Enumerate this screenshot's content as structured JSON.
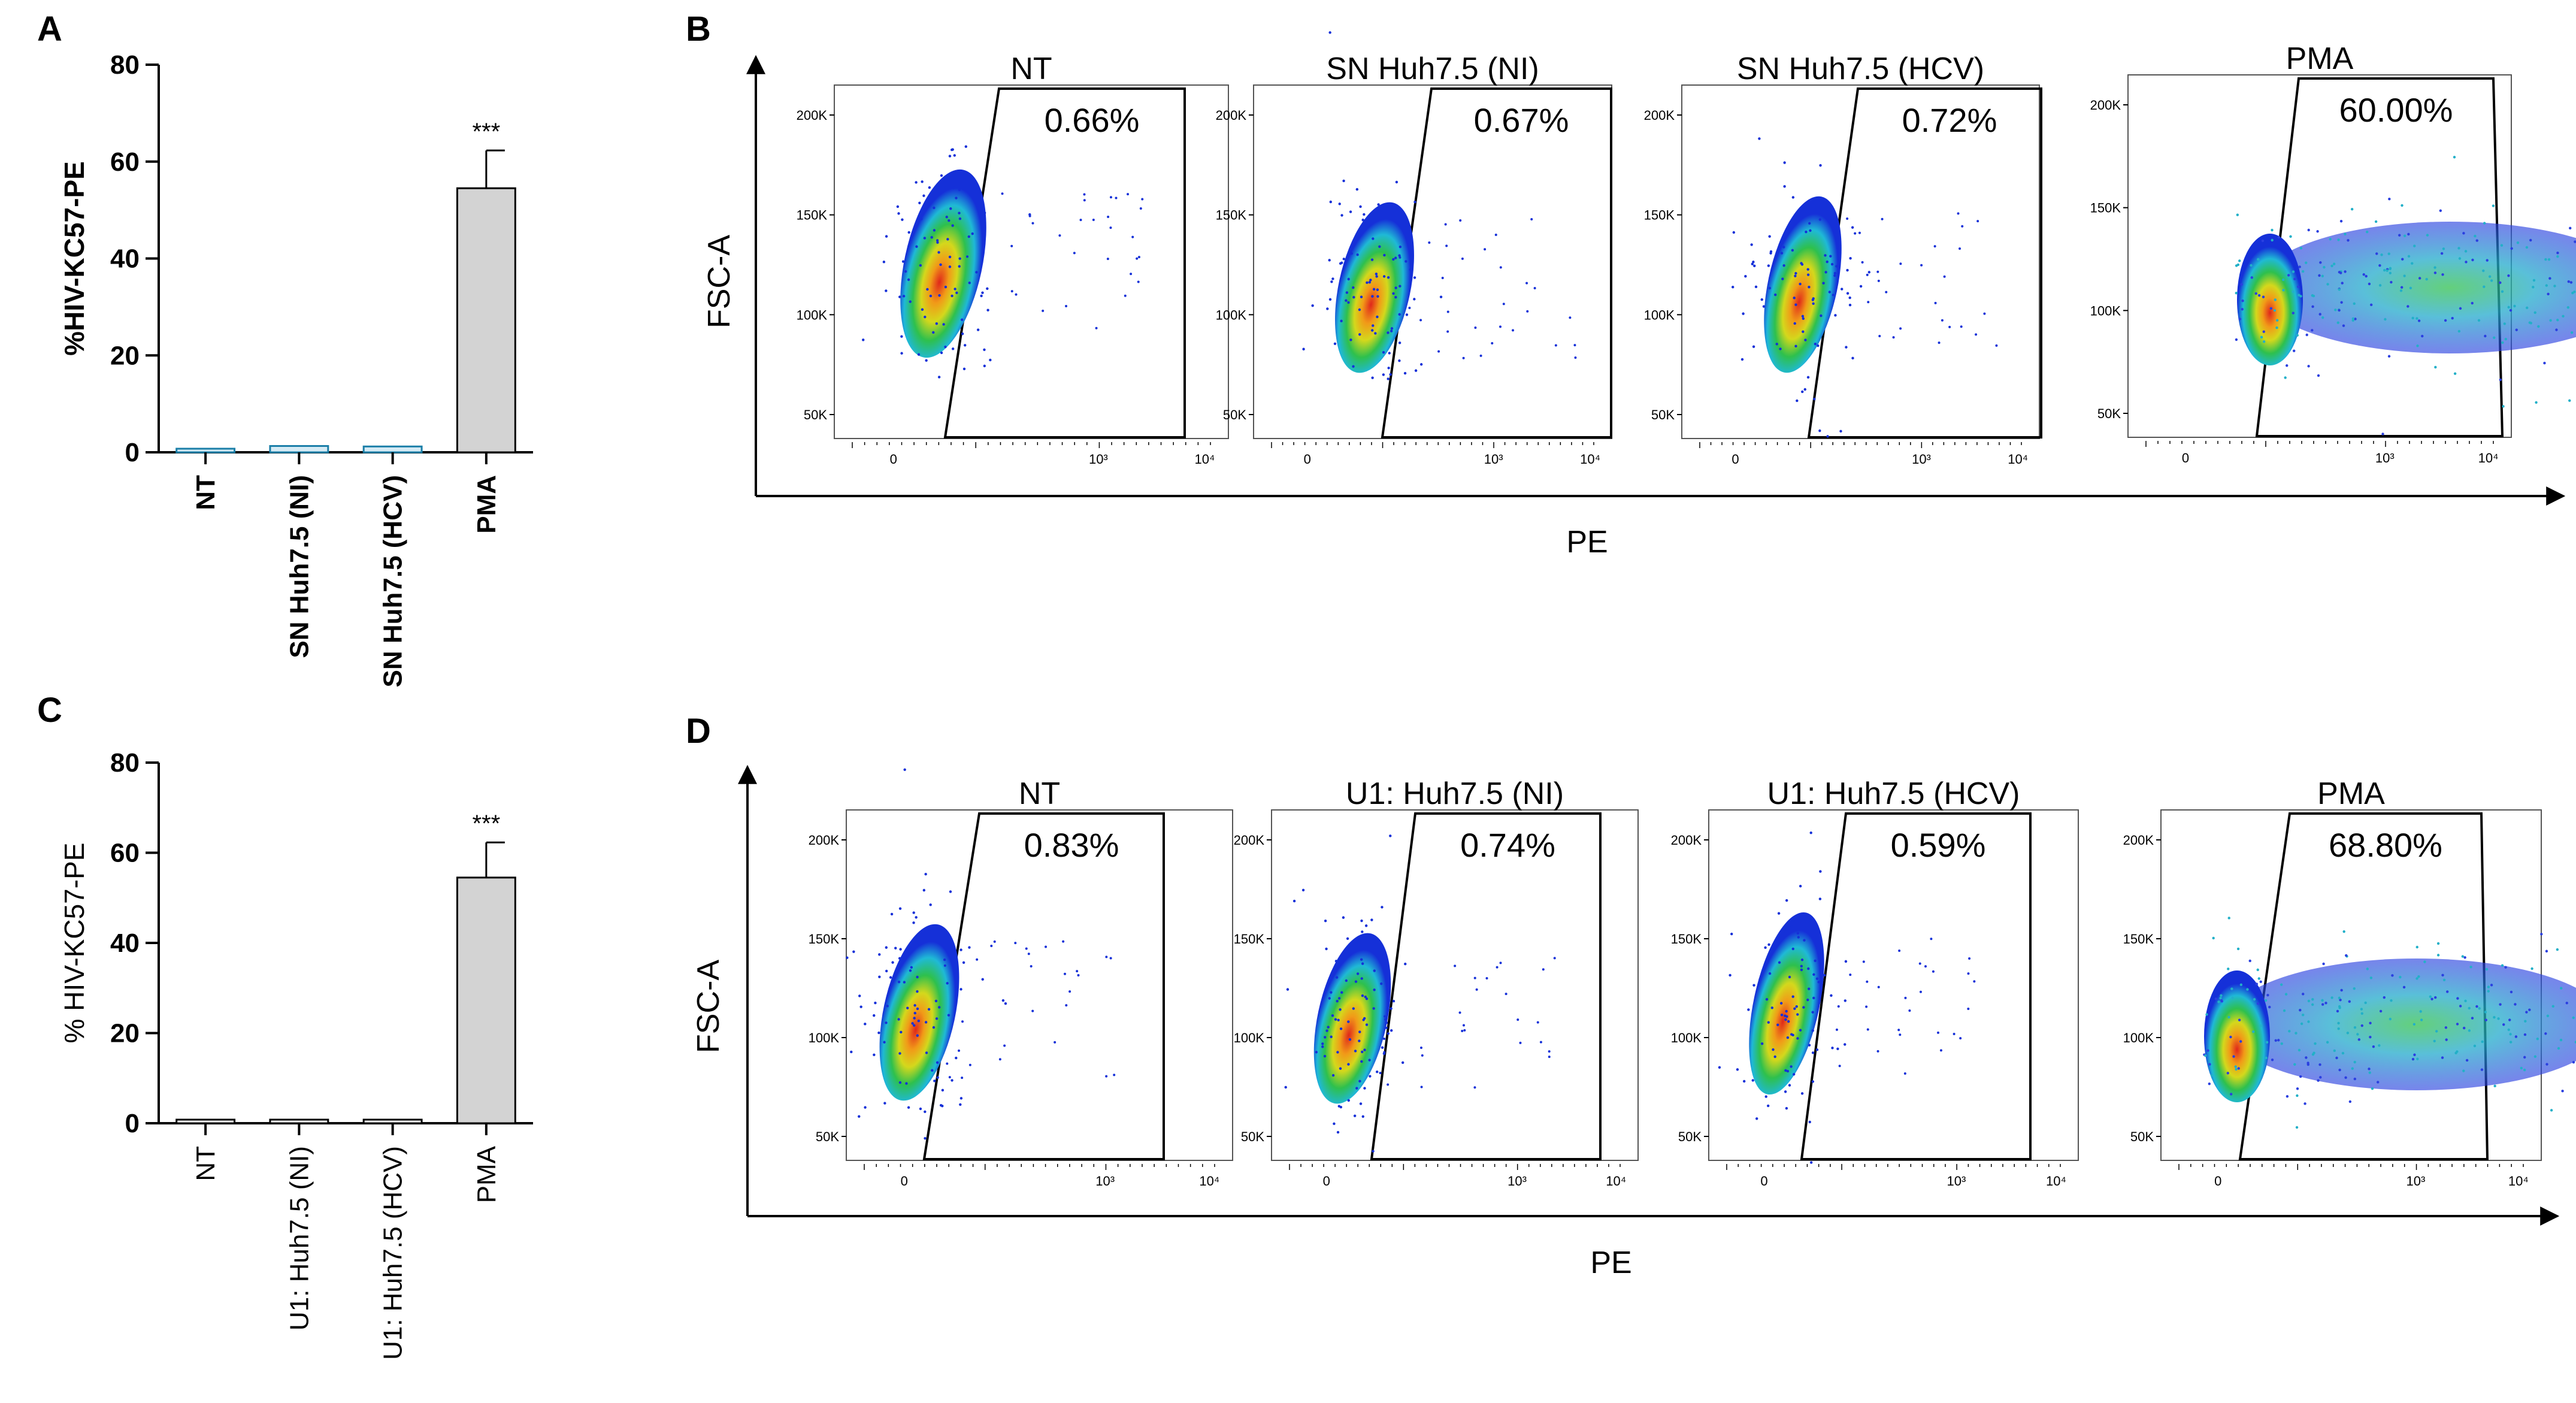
{
  "colors": {
    "bar_fill": "#d3d3d3",
    "bar_fill_small_ab": "#d6ebf5",
    "bar_stroke_small_ab": "#1b7fa8",
    "axis": "#000000"
  },
  "panels": {
    "A": {
      "letter": "A"
    },
    "B": {
      "letter": "B",
      "yaxis_title": "FSC-A",
      "xaxis_title": "PE"
    },
    "C": {
      "letter": "C"
    },
    "D": {
      "letter": "D",
      "yaxis_title": "FSC-A",
      "xaxis_title": "PE"
    }
  },
  "chart_data": [
    {
      "panel": "A",
      "type": "bar",
      "ylabel": "%HIV-KC57-PE",
      "ylim": [
        0,
        80
      ],
      "yticks": [
        "0",
        "20",
        "40",
        "60",
        "80"
      ],
      "categories": [
        "NT",
        "SN Huh7.5 (NI)",
        "SN Huh7.5 (HCV)",
        "PMA"
      ],
      "values": [
        0.7,
        1.3,
        1.2,
        54.5
      ],
      "errors": [
        0.2,
        0.3,
        0.4,
        7.8
      ],
      "significance": [
        "",
        "",
        "",
        "***"
      ]
    },
    {
      "panel": "C",
      "type": "bar",
      "ylabel": "% HIV-KC57-PE",
      "ylim": [
        0,
        80
      ],
      "yticks": [
        "0",
        "20",
        "40",
        "60",
        "80"
      ],
      "categories": [
        "NT",
        "U1: Huh7.5 (NI)",
        "U1: Huh7.5 (HCV)",
        "PMA"
      ],
      "values": [
        0.6,
        0.5,
        0.4,
        54.5
      ],
      "errors": [
        0.2,
        0.1,
        0.1,
        7.8
      ],
      "significance": [
        "",
        "",
        "",
        "***"
      ]
    },
    {
      "panel": "B",
      "type": "scatter",
      "subtype": "flow-cytometry-density",
      "xlabel": "PE",
      "ylabel": "FSC-A",
      "x_ticks": [
        "0",
        "10³",
        "10⁴"
      ],
      "y_ticks": [
        "50K",
        "100K",
        "150K",
        "200K"
      ],
      "plots": [
        {
          "title": "NT",
          "gate_percent": "0.66%"
        },
        {
          "title": "SN Huh7.5 (NI)",
          "gate_percent": "0.67%"
        },
        {
          "title": "SN Huh7.5 (HCV)",
          "gate_percent": "0.72%"
        },
        {
          "title": "PMA",
          "gate_percent": "60.00%"
        }
      ]
    },
    {
      "panel": "D",
      "type": "scatter",
      "subtype": "flow-cytometry-density",
      "xlabel": "PE",
      "ylabel": "FSC-A",
      "x_ticks": [
        "0",
        "10³",
        "10⁴"
      ],
      "y_ticks": [
        "50K",
        "100K",
        "150K",
        "200K"
      ],
      "plots": [
        {
          "title": "NT",
          "gate_percent": "0.83%"
        },
        {
          "title": "U1: Huh7.5 (NI)",
          "gate_percent": "0.74%"
        },
        {
          "title": "U1: Huh7.5 (HCV)",
          "gate_percent": "0.59%"
        },
        {
          "title": "PMA",
          "gate_percent": "68.80%"
        }
      ]
    }
  ]
}
